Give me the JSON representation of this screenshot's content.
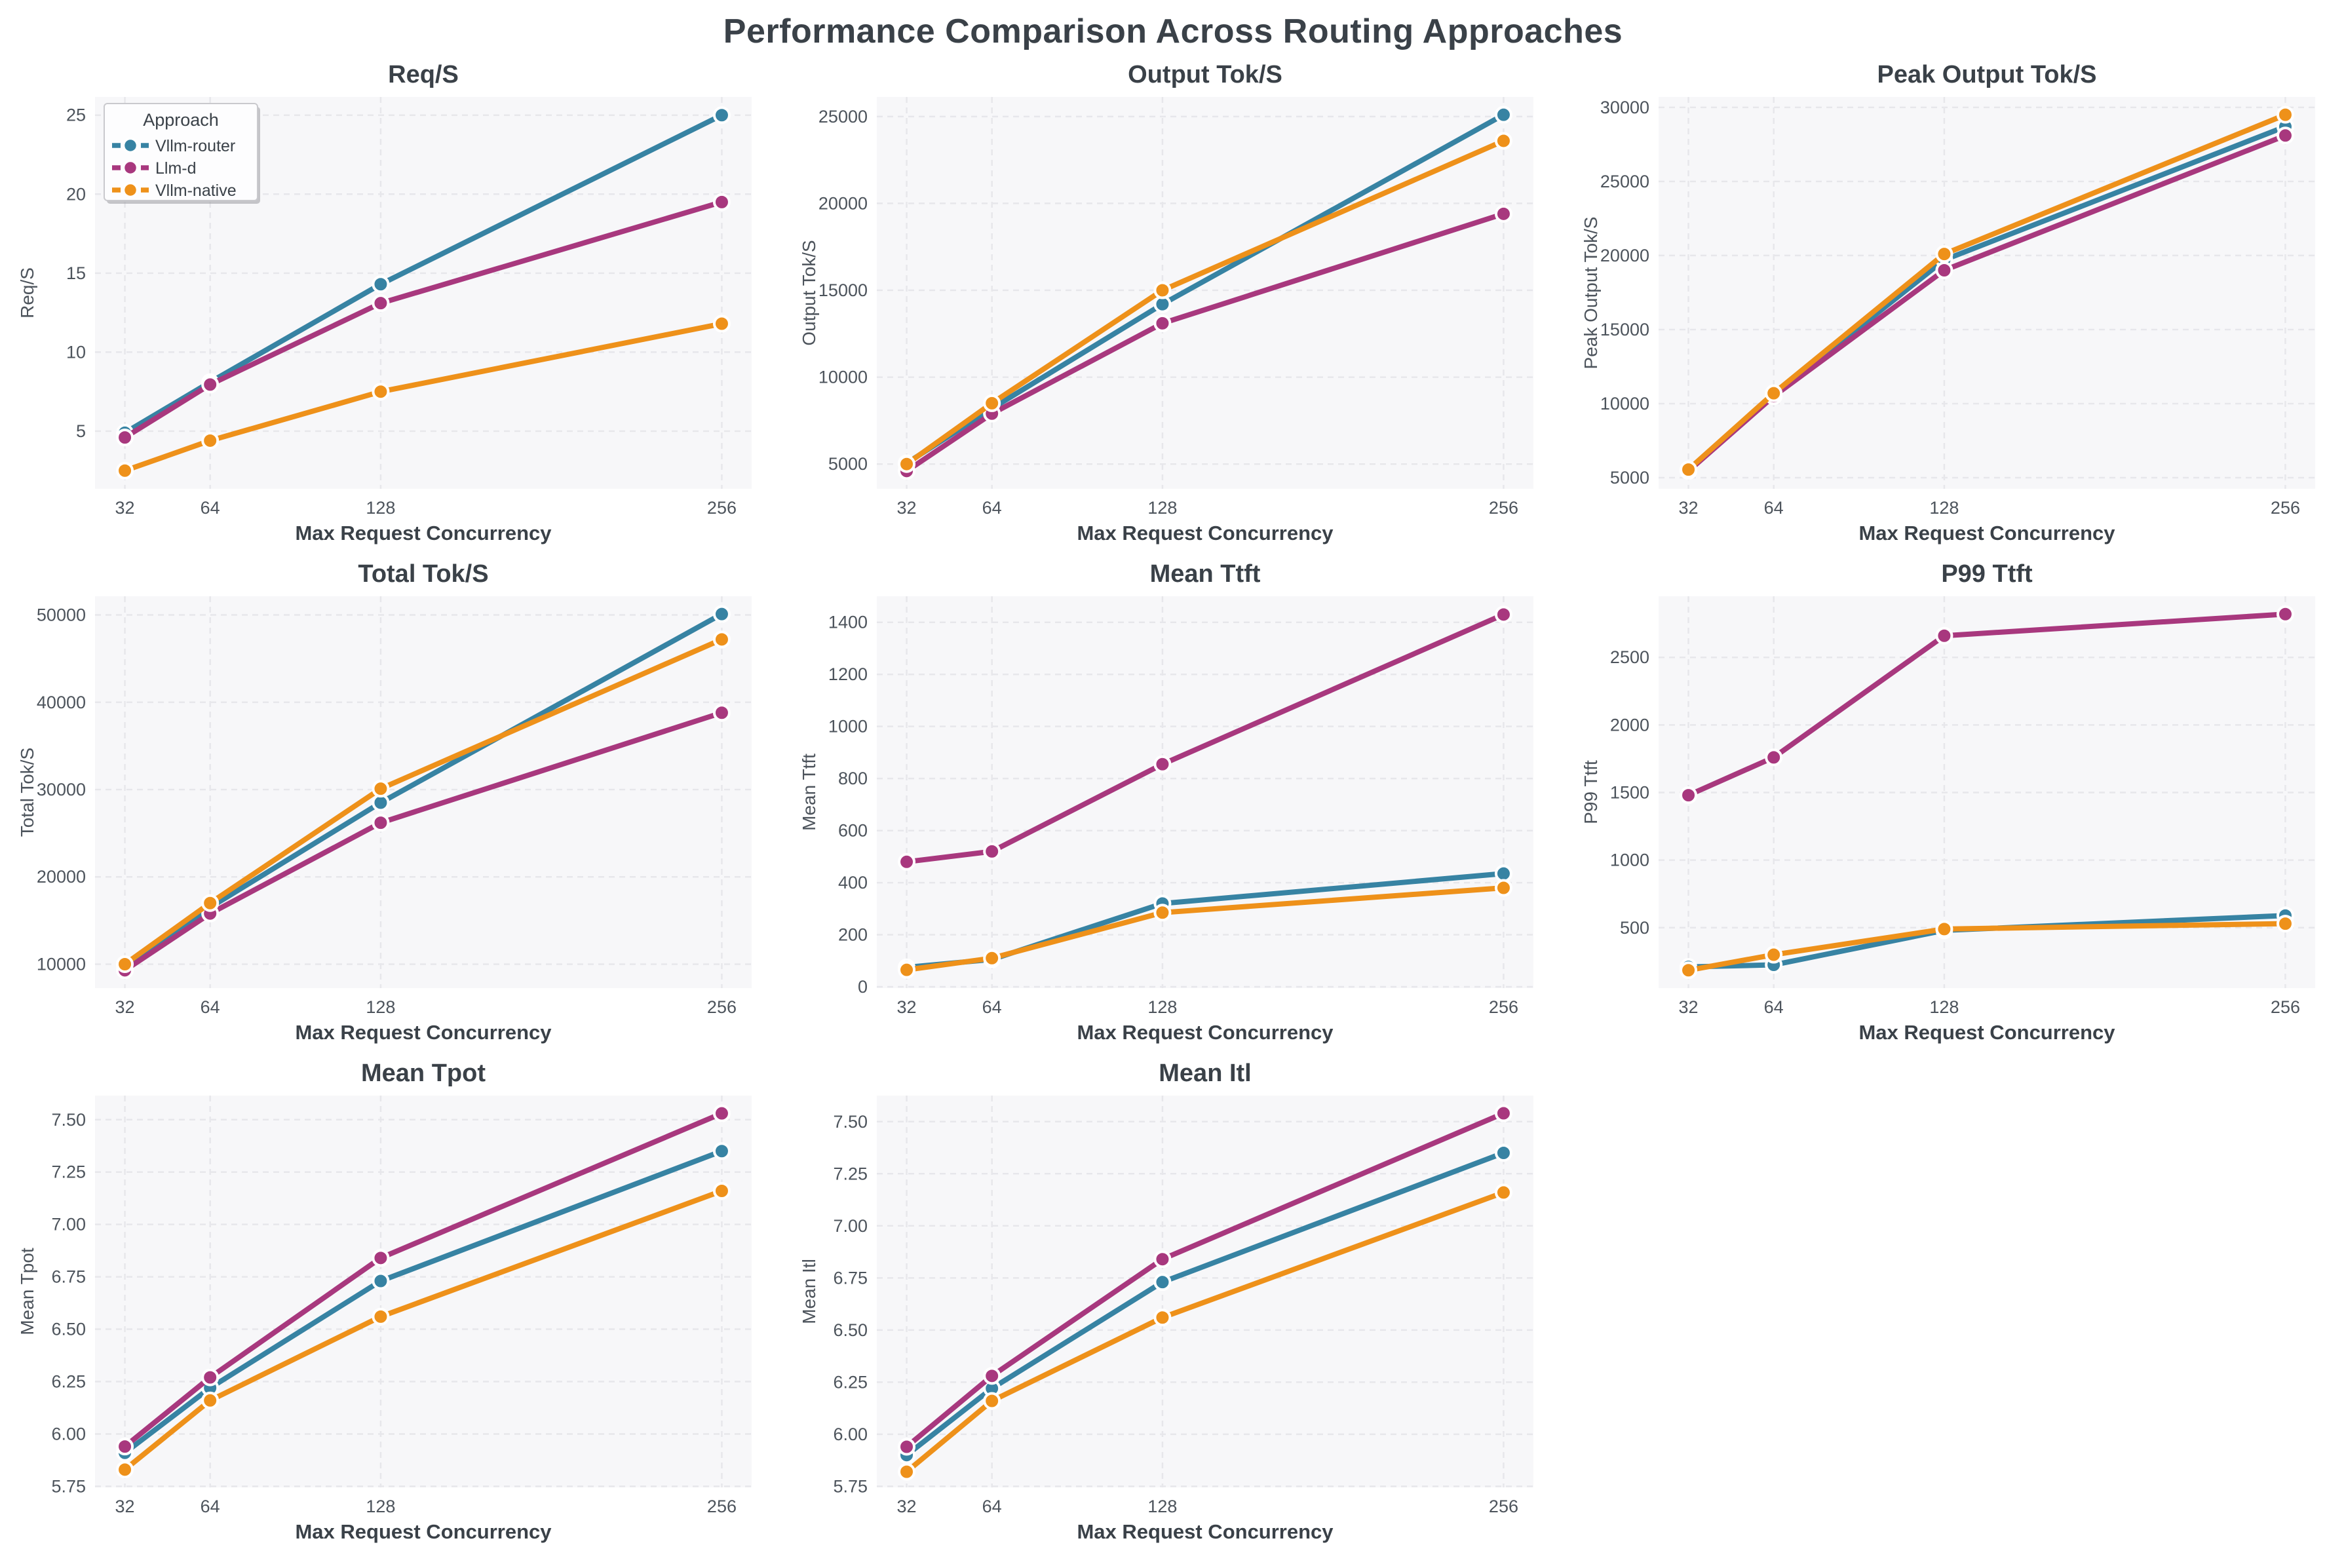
{
  "page_title": "Performance Comparison Across Routing Approaches",
  "colors": {
    "vllm_router": "#3783a3",
    "llm_d": "#a8387e",
    "vllm_native": "#ee911a",
    "title_text": "#3a4148",
    "tick_text": "#4d545c",
    "plot_bg": "#f7f7f9",
    "grid_line": "#e7e7eb",
    "legend_border": "#c9c9cd",
    "legend_bg": "#fdfdfe"
  },
  "legend": {
    "title": "Approach",
    "entries": [
      "Vllm-router",
      "Llm-d",
      "Vllm-native"
    ]
  },
  "x_axis": {
    "label": "Max Request Concurrency",
    "ticks": [
      32,
      64,
      128,
      256
    ],
    "tick_labels": [
      "32",
      "64",
      "128",
      "256"
    ]
  },
  "chart_data": [
    {
      "type": "line",
      "title": "Req/S",
      "ylabel": "Req/S",
      "xlabel": "Max Request Concurrency",
      "x": [
        32,
        64,
        128,
        256
      ],
      "legend": true,
      "ylim": [
        1.35,
        26.15
      ],
      "yticks": [
        5,
        10,
        15,
        20,
        25
      ],
      "ytick_labels": [
        "5",
        "10",
        "15",
        "20",
        "25"
      ],
      "series": [
        {
          "name": "Vllm-router",
          "color_key": "vllm_router",
          "values": [
            4.9,
            8.1,
            14.3,
            25.0
          ]
        },
        {
          "name": "Llm-d",
          "color_key": "llm_d",
          "values": [
            4.6,
            7.95,
            13.1,
            19.5
          ]
        },
        {
          "name": "Vllm-native",
          "color_key": "vllm_native",
          "values": [
            2.5,
            4.4,
            7.5,
            11.8
          ]
        }
      ]
    },
    {
      "type": "line",
      "title": "Output Tok/S",
      "ylabel": "Output Tok/S",
      "xlabel": "Max Request Concurrency",
      "x": [
        32,
        64,
        128,
        256
      ],
      "legend": false,
      "ylim": [
        3575,
        26125
      ],
      "yticks": [
        5000,
        10000,
        15000,
        20000,
        25000
      ],
      "ytick_labels": [
        "5000",
        "10000",
        "15000",
        "20000",
        "25000"
      ],
      "series": [
        {
          "name": "Vllm-router",
          "color_key": "vllm_router",
          "values": [
            5050,
            8200,
            14200,
            25100
          ]
        },
        {
          "name": "Llm-d",
          "color_key": "llm_d",
          "values": [
            4600,
            7900,
            13100,
            19400
          ]
        },
        {
          "name": "Vllm-native",
          "color_key": "vllm_native",
          "values": [
            5000,
            8500,
            15000,
            23600
          ]
        }
      ]
    },
    {
      "type": "line",
      "title": "Peak Output Tok/S",
      "ylabel": "Peak Output Tok/S",
      "xlabel": "Max Request Concurrency",
      "x": [
        32,
        64,
        128,
        256
      ],
      "legend": false,
      "ylim": [
        4250,
        30700
      ],
      "yticks": [
        5000,
        10000,
        15000,
        20000,
        25000,
        30000
      ],
      "ytick_labels": [
        "5000",
        "10000",
        "15000",
        "20000",
        "25000",
        "30000"
      ],
      "series": [
        {
          "name": "Vllm-router",
          "color_key": "vllm_router",
          "values": [
            5500,
            10550,
            19700,
            28700
          ]
        },
        {
          "name": "Llm-d",
          "color_key": "llm_d",
          "values": [
            5450,
            10500,
            19000,
            28100
          ]
        },
        {
          "name": "Vllm-native",
          "color_key": "vllm_native",
          "values": [
            5550,
            10700,
            20100,
            29500
          ]
        }
      ]
    },
    {
      "type": "line",
      "title": "Total Tok/S",
      "ylabel": "Total Tok/S",
      "xlabel": "Max Request Concurrency",
      "x": [
        32,
        64,
        128,
        256
      ],
      "legend": false,
      "ylim": [
        7260,
        52140
      ],
      "yticks": [
        10000,
        20000,
        30000,
        40000,
        50000
      ],
      "ytick_labels": [
        "10000",
        "20000",
        "30000",
        "40000",
        "50000"
      ],
      "series": [
        {
          "name": "Vllm-router",
          "color_key": "vllm_router",
          "values": [
            9900,
            16500,
            28500,
            50100
          ]
        },
        {
          "name": "Llm-d",
          "color_key": "llm_d",
          "values": [
            9300,
            15800,
            26200,
            38800
          ]
        },
        {
          "name": "Vllm-native",
          "color_key": "vllm_native",
          "values": [
            10000,
            17000,
            30100,
            47200
          ]
        }
      ]
    },
    {
      "type": "line",
      "title": "Mean Ttft",
      "ylabel": "Mean Ttft",
      "xlabel": "Max Request Concurrency",
      "x": [
        32,
        64,
        128,
        256
      ],
      "legend": false,
      "ylim": [
        -5,
        1500
      ],
      "yticks": [
        0,
        200,
        400,
        600,
        800,
        1000,
        1200,
        1400
      ],
      "ytick_labels": [
        "0",
        "200",
        "400",
        "600",
        "800",
        "1000",
        "1200",
        "1400"
      ],
      "series": [
        {
          "name": "Vllm-router",
          "color_key": "vllm_router",
          "values": [
            75,
            105,
            320,
            435
          ]
        },
        {
          "name": "Llm-d",
          "color_key": "llm_d",
          "values": [
            480,
            520,
            855,
            1430
          ]
        },
        {
          "name": "Vllm-native",
          "color_key": "vllm_native",
          "values": [
            65,
            110,
            285,
            380
          ]
        }
      ]
    },
    {
      "type": "line",
      "title": "P99 Ttft",
      "ylabel": "P99 Ttft",
      "xlabel": "Max Request Concurrency",
      "x": [
        32,
        64,
        128,
        256
      ],
      "legend": false,
      "ylim": [
        53,
        2952
      ],
      "yticks": [
        500,
        1000,
        1500,
        2000,
        2500
      ],
      "ytick_labels": [
        "500",
        "1000",
        "1500",
        "2000",
        "2500"
      ],
      "series": [
        {
          "name": "Vllm-router",
          "color_key": "vllm_router",
          "values": [
            210,
            225,
            480,
            590
          ]
        },
        {
          "name": "Llm-d",
          "color_key": "llm_d",
          "values": [
            1480,
            1760,
            2660,
            2820
          ]
        },
        {
          "name": "Vllm-native",
          "color_key": "vllm_native",
          "values": [
            185,
            300,
            490,
            530
          ]
        }
      ]
    },
    {
      "type": "line",
      "title": "Mean Tpot",
      "ylabel": "Mean Tpot",
      "xlabel": "Max Request Concurrency",
      "x": [
        32,
        64,
        128,
        256
      ],
      "legend": false,
      "ylim": [
        5.745,
        7.615
      ],
      "yticks": [
        5.75,
        6.0,
        6.25,
        6.5,
        6.75,
        7.0,
        7.25,
        7.5
      ],
      "ytick_labels": [
        "5.75",
        "6.00",
        "6.25",
        "6.50",
        "6.75",
        "7.00",
        "7.25",
        "7.50"
      ],
      "series": [
        {
          "name": "Vllm-router",
          "color_key": "vllm_router",
          "values": [
            5.91,
            6.22,
            6.73,
            7.35
          ]
        },
        {
          "name": "Llm-d",
          "color_key": "llm_d",
          "values": [
            5.94,
            6.27,
            6.84,
            7.53
          ]
        },
        {
          "name": "Vllm-native",
          "color_key": "vllm_native",
          "values": [
            5.83,
            6.16,
            6.56,
            7.16
          ]
        }
      ]
    },
    {
      "type": "line",
      "title": "Mean Itl",
      "ylabel": "Mean Itl",
      "xlabel": "Max Request Concurrency",
      "x": [
        32,
        64,
        128,
        256
      ],
      "legend": false,
      "ylim": [
        5.745,
        7.625
      ],
      "yticks": [
        5.75,
        6.0,
        6.25,
        6.5,
        6.75,
        7.0,
        7.25,
        7.5
      ],
      "ytick_labels": [
        "5.75",
        "6.00",
        "6.25",
        "6.50",
        "6.75",
        "7.00",
        "7.25",
        "7.50"
      ],
      "series": [
        {
          "name": "Vllm-router",
          "color_key": "vllm_router",
          "values": [
            5.9,
            6.22,
            6.73,
            7.35
          ]
        },
        {
          "name": "Llm-d",
          "color_key": "llm_d",
          "values": [
            5.94,
            6.28,
            6.84,
            7.54
          ]
        },
        {
          "name": "Vllm-native",
          "color_key": "vllm_native",
          "values": [
            5.82,
            6.16,
            6.56,
            7.16
          ]
        }
      ]
    }
  ]
}
